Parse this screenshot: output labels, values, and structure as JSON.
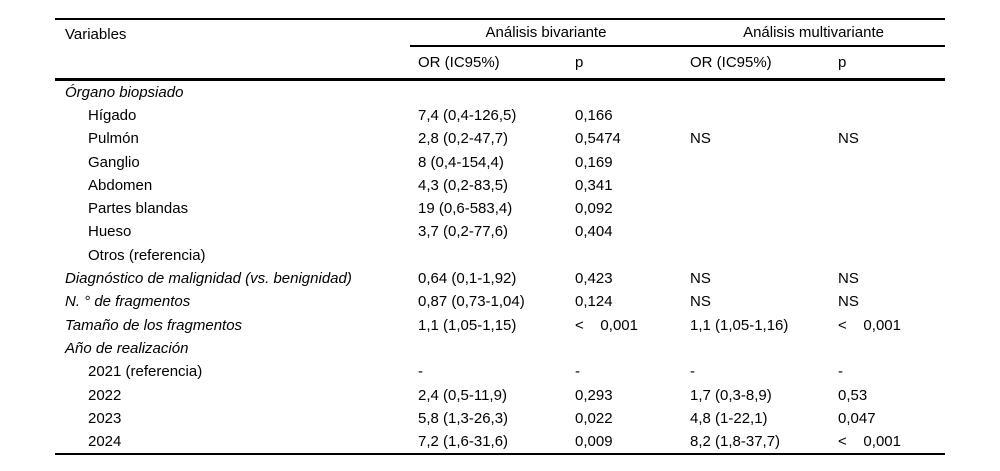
{
  "page": {
    "background_color": "#ffffff",
    "text_color": "#000000",
    "rule_color": "#000000"
  },
  "table": {
    "header": {
      "variables_label": "Variables",
      "groups": [
        {
          "label": "Análisis bivariante"
        },
        {
          "label": "Análisis multivariante"
        }
      ],
      "subheaders": [
        "OR (IC95%)",
        "p",
        "OR (IC95%)",
        "p"
      ]
    },
    "rows": [
      {
        "label": "Órgano biopsiado",
        "style": "group",
        "cells": [
          "",
          "",
          "",
          ""
        ]
      },
      {
        "label": "Hígado",
        "style": "sub",
        "cells": [
          "7,4 (0,4-126,5)",
          "0,166",
          "",
          ""
        ]
      },
      {
        "label": "Pulmón",
        "style": "sub",
        "cells": [
          "2,8 (0,2-47,7)",
          "0,5474",
          "NS",
          "NS"
        ]
      },
      {
        "label": "Ganglio",
        "style": "sub",
        "cells": [
          "8 (0,4-154,4)",
          "0,169",
          "",
          ""
        ]
      },
      {
        "label": "Abdomen",
        "style": "sub",
        "cells": [
          "4,3 (0,2-83,5)",
          "0,341",
          "",
          ""
        ]
      },
      {
        "label": "Partes blandas",
        "style": "sub",
        "cells": [
          "19 (0,6-583,4)",
          "0,092",
          "",
          ""
        ]
      },
      {
        "label": "Hueso",
        "style": "sub",
        "cells": [
          "3,7 (0,2-77,6)",
          "0,404",
          "",
          ""
        ]
      },
      {
        "label": "Otros (referencia)",
        "style": "sub",
        "cells": [
          "",
          "",
          "",
          ""
        ]
      },
      {
        "label": "Diagnóstico de malignidad (vs. benignidad)",
        "style": "group",
        "cells": [
          "0,64 (0,1-1,92)",
          "0,423",
          "NS",
          "NS"
        ]
      },
      {
        "label": "N. ° de fragmentos",
        "style": "group",
        "cells": [
          "0,87 (0,73-1,04)",
          "0,124",
          "NS",
          "NS"
        ]
      },
      {
        "label": "Tamaño de los fragmentos",
        "style": "group",
        "cells": [
          "1,1 (1,05-1,15)",
          "<    0,001",
          "1,1 (1,05-1,16)",
          "<    0,001"
        ]
      },
      {
        "label": "Año de realización",
        "style": "group",
        "cells": [
          "",
          "",
          "",
          ""
        ]
      },
      {
        "label": "2021 (referencia)",
        "style": "sub",
        "cells": [
          "-",
          "-",
          "-",
          "-"
        ]
      },
      {
        "label": "2022",
        "style": "sub",
        "cells": [
          "2,4 (0,5-11,9)",
          "0,293",
          "1,7 (0,3-8,9)",
          "0,53"
        ]
      },
      {
        "label": "2023",
        "style": "sub",
        "cells": [
          "5,8 (1,3-26,3)",
          "0,022",
          "4,8 (1-22,1)",
          "0,047"
        ]
      },
      {
        "label": "2024",
        "style": "sub",
        "cells": [
          "7,2 (1,6-31,6)",
          "0,009",
          "8,2 (1,8-37,7)",
          "<    0,001"
        ]
      }
    ]
  }
}
